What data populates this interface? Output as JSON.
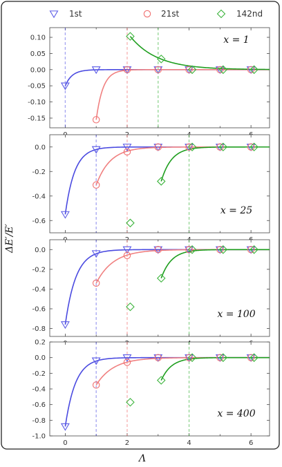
{
  "chart_data": {
    "type": "scatter",
    "xlabel": "Λ",
    "ylabel": "ΔE′/E′",
    "xlim": [
      -0.5,
      6.6
    ],
    "xticks": [
      0,
      2,
      4,
      6
    ],
    "legend_position": "top",
    "series": [
      {
        "name": "1st",
        "marker": "triangle-down",
        "color": "#5a5ae6",
        "curve_color": "#4a4ae0",
        "vline": 0
      },
      {
        "name": "21st",
        "marker": "circle",
        "color": "#f07070",
        "curve_color": "#f08080",
        "vline": 2
      },
      {
        "name": "142nd",
        "marker": "diamond",
        "color": "#3cb43c",
        "curve_color": "#1e9e1e",
        "vline": 3
      }
    ],
    "panels": [
      {
        "label": "x = 1",
        "ylim": [
          -0.18,
          0.13
        ],
        "yticks": [
          "0.10",
          "0.05",
          "0.00",
          "-0.05",
          "-0.10",
          "-0.15"
        ],
        "ytick_values": [
          0.1,
          0.05,
          0.0,
          -0.05,
          -0.1,
          -0.15
        ],
        "vlines": [
          0,
          2,
          3
        ],
        "series_points": [
          [
            [
              0,
              -0.05
            ],
            [
              1,
              0.0
            ],
            [
              2,
              0.0
            ],
            [
              3,
              0.0
            ],
            [
              4,
              0.0
            ],
            [
              5,
              0.0
            ],
            [
              6,
              0.0
            ]
          ],
          [
            [
              1,
              -0.155
            ],
            [
              2,
              0.0
            ],
            [
              3,
              0.0
            ],
            [
              4,
              0.0
            ],
            [
              5,
              0.0
            ],
            [
              6,
              0.0
            ]
          ],
          [
            [
              2.1,
              0.103
            ],
            [
              3.1,
              0.033
            ],
            [
              4.1,
              0.0
            ],
            [
              5.1,
              0.0
            ],
            [
              6.1,
              0.0
            ]
          ]
        ],
        "curves": [
          {
            "x0": 0,
            "a": -0.05,
            "k": 4.5
          },
          {
            "x0": 1,
            "a": -0.155,
            "k": 4.5
          },
          {
            "x0": 2.1,
            "a": 0.103,
            "k": 1.15
          }
        ]
      },
      {
        "label": "x = 25",
        "ylim": [
          -0.7,
          0.1
        ],
        "yticks": [
          "0.0",
          "-0.2",
          "-0.4",
          "-0.6"
        ],
        "ytick_values": [
          0.0,
          -0.2,
          -0.4,
          -0.6
        ],
        "vlines": [
          1,
          2,
          4
        ],
        "series_points": [
          [
            [
              0,
              -0.55
            ],
            [
              1,
              -0.02
            ],
            [
              2,
              0.0
            ],
            [
              3,
              0.0
            ],
            [
              4,
              0.0
            ],
            [
              5,
              0.0
            ],
            [
              6,
              0.0
            ]
          ],
          [
            [
              1,
              -0.31
            ],
            [
              2,
              -0.04
            ],
            [
              3,
              0.0
            ],
            [
              4,
              0.0
            ],
            [
              5,
              0.0
            ],
            [
              6,
              0.0
            ]
          ],
          [
            [
              2.1,
              -0.62
            ],
            [
              3.1,
              -0.28
            ],
            [
              4.1,
              0.0
            ],
            [
              5.1,
              0.0
            ],
            [
              6.1,
              0.0
            ]
          ]
        ],
        "curves": [
          {
            "x0": 0,
            "a": -0.55,
            "k": 3.3
          },
          {
            "x0": 1,
            "a": -0.31,
            "k": 2.2
          },
          {
            "x0": 3.1,
            "a": -0.28,
            "k": 3.0
          }
        ]
      },
      {
        "label": "x = 100",
        "ylim": [
          -0.88,
          0.1
        ],
        "yticks": [
          "0.0",
          "-0.2",
          "-0.4",
          "-0.6",
          "-0.8"
        ],
        "ytick_values": [
          0.0,
          -0.2,
          -0.4,
          -0.6,
          -0.8
        ],
        "vlines": [
          1,
          2,
          4
        ],
        "series_points": [
          [
            [
              0,
              -0.76
            ],
            [
              1,
              -0.04
            ],
            [
              2,
              0.0
            ],
            [
              3,
              0.0
            ],
            [
              4,
              0.0
            ],
            [
              5,
              0.0
            ],
            [
              6,
              0.0
            ]
          ],
          [
            [
              1,
              -0.34
            ],
            [
              2,
              -0.06
            ],
            [
              3,
              0.0
            ],
            [
              4,
              0.0
            ],
            [
              5,
              0.0
            ],
            [
              6,
              0.0
            ]
          ],
          [
            [
              2.1,
              -0.58
            ],
            [
              3.1,
              -0.29
            ],
            [
              4.1,
              0.0
            ],
            [
              5.1,
              0.0
            ],
            [
              6.1,
              0.0
            ]
          ]
        ],
        "curves": [
          {
            "x0": 0,
            "a": -0.76,
            "k": 2.9
          },
          {
            "x0": 1,
            "a": -0.34,
            "k": 1.8
          },
          {
            "x0": 3.1,
            "a": -0.29,
            "k": 3.0
          }
        ]
      },
      {
        "label": "x = 400",
        "ylim": [
          -1.0,
          0.2
        ],
        "yticks": [
          "0.2",
          "0.0",
          "-0.2",
          "-0.4",
          "-0.6",
          "-0.8",
          "-1.0"
        ],
        "ytick_values": [
          0.2,
          0.0,
          -0.2,
          -0.4,
          -0.6,
          -0.8,
          -1.0
        ],
        "vlines": [
          1,
          2,
          4
        ],
        "series_points": [
          [
            [
              0,
              -0.88
            ],
            [
              1,
              -0.04
            ],
            [
              2,
              0.0
            ],
            [
              3,
              0.0
            ],
            [
              4,
              0.0
            ],
            [
              5,
              0.0
            ],
            [
              6,
              0.0
            ]
          ],
          [
            [
              1,
              -0.35
            ],
            [
              2,
              -0.06
            ],
            [
              3,
              0.0
            ],
            [
              4,
              0.0
            ],
            [
              5,
              0.0
            ],
            [
              6,
              0.0
            ]
          ],
          [
            [
              2.1,
              -0.57
            ],
            [
              3.1,
              -0.29
            ],
            [
              4.1,
              0.0
            ],
            [
              5.1,
              0.0
            ],
            [
              6.1,
              0.0
            ]
          ]
        ],
        "curves": [
          {
            "x0": 0,
            "a": -0.88,
            "k": 3.0
          },
          {
            "x0": 1,
            "a": -0.35,
            "k": 1.8
          },
          {
            "x0": 3.1,
            "a": -0.29,
            "k": 3.0
          }
        ]
      }
    ]
  }
}
